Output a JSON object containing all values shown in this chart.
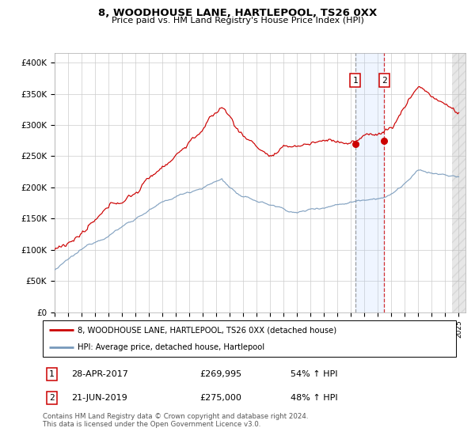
{
  "title": "8, WOODHOUSE LANE, HARTLEPOOL, TS26 0XX",
  "subtitle": "Price paid vs. HM Land Registry's House Price Index (HPI)",
  "ylabel_ticks": [
    "£0",
    "£50K",
    "£100K",
    "£150K",
    "£200K",
    "£250K",
    "£300K",
    "£350K",
    "£400K"
  ],
  "ytick_values": [
    0,
    50000,
    100000,
    150000,
    200000,
    250000,
    300000,
    350000,
    400000
  ],
  "ylim": [
    0,
    415000
  ],
  "xlim_start": 1995.0,
  "xlim_end": 2025.5,
  "transaction1": {
    "date_label": "28-APR-2017",
    "price": 269995,
    "pct": "54%",
    "direction": "↑",
    "year": 2017.32
  },
  "transaction2": {
    "date_label": "21-JUN-2019",
    "price": 275000,
    "pct": "48%",
    "direction": "↑",
    "year": 2019.47
  },
  "legend_red": "8, WOODHOUSE LANE, HARTLEPOOL, TS26 0XX (detached house)",
  "legend_blue": "HPI: Average price, detached house, Hartlepool",
  "footer": "Contains HM Land Registry data © Crown copyright and database right 2024.\nThis data is licensed under the Open Government Licence v3.0.",
  "red_color": "#cc0000",
  "blue_color": "#7799bb",
  "grid_color": "#cccccc",
  "hatch_start": 2024.5,
  "hatch_color": "#dddddd"
}
